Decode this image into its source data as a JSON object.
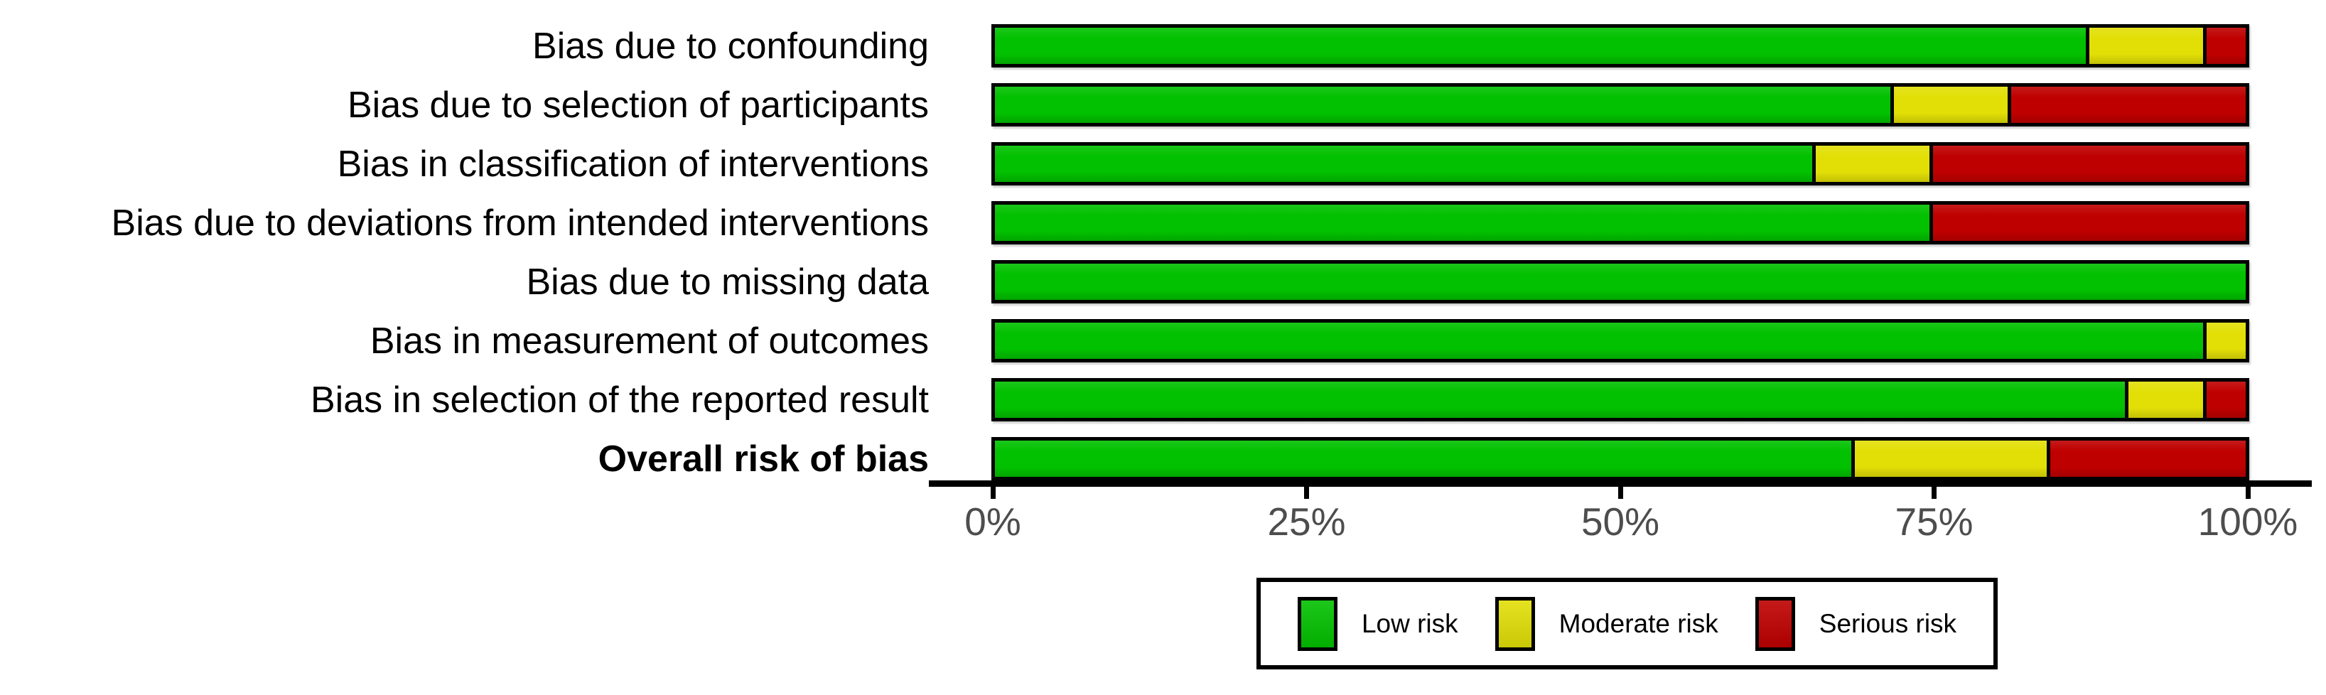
{
  "chart_data": {
    "type": "bar",
    "orientation": "horizontal_stacked",
    "unit": "percent_of_studies",
    "title": "",
    "xlabel": "",
    "ylabel": "",
    "xlim": [
      0,
      100
    ],
    "x_ticks": [
      "0%",
      "25%",
      "50%",
      "75%",
      "100%"
    ],
    "grid": false,
    "legend_position": "bottom-center",
    "categories": [
      "Bias due to confounding",
      "Bias due to selection of participants",
      "Bias in classification of interventions",
      "Bias due to deviations from intended interventions",
      "Bias due to missing data",
      "Bias in measurement of outcomes",
      "Bias in selection of the reported result",
      "Overall risk of bias"
    ],
    "bold_category_index": 7,
    "series": [
      {
        "name": "Low risk",
        "color": "#02C100",
        "values": [
          87.5,
          71.875,
          65.625,
          75,
          100,
          96.875,
          90.625,
          68.75
        ]
      },
      {
        "name": "Moderate risk",
        "color": "#E2DF07",
        "values": [
          9.375,
          9.375,
          9.375,
          0,
          0,
          3.125,
          6.25,
          15.625
        ]
      },
      {
        "name": "Serious risk",
        "color": "#BF0000",
        "values": [
          3.125,
          18.75,
          25,
          25,
          0,
          0,
          3.125,
          15.625
        ]
      }
    ]
  },
  "colors": {
    "background": "#ffffff",
    "bar_border": "#000000",
    "axis": "#000000",
    "tick_label": "#4d4d4d",
    "category_label": "#000000"
  }
}
